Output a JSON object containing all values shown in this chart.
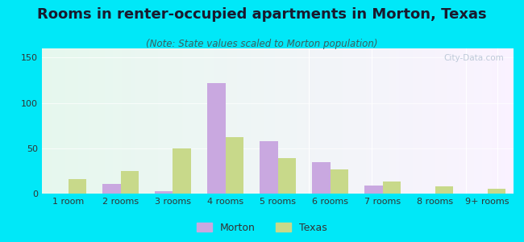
{
  "title": "Rooms in renter-occupied apartments in Morton, Texas",
  "subtitle": "(Note: State values scaled to Morton population)",
  "categories": [
    "1 room",
    "2 rooms",
    "3 rooms",
    "4 rooms",
    "5 rooms",
    "6 rooms",
    "7 rooms",
    "8 rooms",
    "9+ rooms"
  ],
  "morton_values": [
    0,
    11,
    3,
    122,
    58,
    35,
    9,
    0,
    0
  ],
  "texas_values": [
    16,
    25,
    50,
    62,
    39,
    27,
    13,
    8,
    5
  ],
  "morton_color": "#c9a8e0",
  "texas_color": "#c8d98a",
  "background_outer": "#00e8f8",
  "ylim": [
    0,
    160
  ],
  "yticks": [
    0,
    50,
    100,
    150
  ],
  "title_fontsize": 13,
  "subtitle_fontsize": 8.5,
  "tick_fontsize": 8,
  "legend_fontsize": 9,
  "bar_width": 0.35
}
